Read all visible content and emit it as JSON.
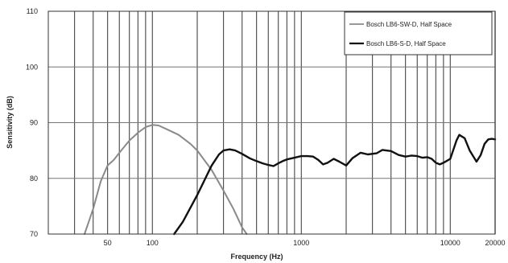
{
  "chart_data": {
    "type": "line",
    "title": "",
    "xlabel": "Frequency (Hz)",
    "ylabel": "Sensitivity (dB)",
    "x_scale": "log",
    "xlim": [
      20,
      20000
    ],
    "ylim": [
      70,
      110
    ],
    "x_ticks": [
      {
        "value": 50,
        "label": "50"
      },
      {
        "value": 100,
        "label": "100"
      },
      {
        "value": 1000,
        "label": "1000"
      },
      {
        "value": 10000,
        "label": "10000"
      },
      {
        "value": 20000,
        "label": "20000"
      }
    ],
    "y_ticks": [
      {
        "value": 70,
        "label": "70"
      },
      {
        "value": 80,
        "label": "80"
      },
      {
        "value": 90,
        "label": "90"
      },
      {
        "value": 100,
        "label": "100"
      },
      {
        "value": 110,
        "label": "110"
      }
    ],
    "grid": true,
    "legend_position": "top-right",
    "series": [
      {
        "name": "Bosch LB6-SW-D, Half Space",
        "color": "#8a8a8a",
        "points": [
          [
            35,
            70
          ],
          [
            40,
            74.5
          ],
          [
            45,
            79.5
          ],
          [
            50,
            82.3
          ],
          [
            55,
            83.3
          ],
          [
            60,
            84.6
          ],
          [
            70,
            86.8
          ],
          [
            80,
            88.2
          ],
          [
            90,
            89.2
          ],
          [
            100,
            89.6
          ],
          [
            110,
            89.5
          ],
          [
            130,
            88.6
          ],
          [
            150,
            87.8
          ],
          [
            180,
            86.2
          ],
          [
            200,
            85
          ],
          [
            250,
            81.5
          ],
          [
            300,
            77.8
          ],
          [
            350,
            74.5
          ],
          [
            400,
            71.2
          ],
          [
            430,
            70
          ]
        ]
      },
      {
        "name": "Bosch LB6-S-D, Half Space",
        "color": "#111111",
        "points": [
          [
            140,
            70
          ],
          [
            160,
            72.2
          ],
          [
            200,
            77
          ],
          [
            250,
            82.3
          ],
          [
            280,
            84.3
          ],
          [
            300,
            85
          ],
          [
            330,
            85.2
          ],
          [
            360,
            85
          ],
          [
            400,
            84.4
          ],
          [
            450,
            83.6
          ],
          [
            500,
            83.1
          ],
          [
            550,
            82.7
          ],
          [
            600,
            82.4
          ],
          [
            650,
            82.2
          ],
          [
            700,
            82.7
          ],
          [
            750,
            83.1
          ],
          [
            800,
            83.4
          ],
          [
            900,
            83.7
          ],
          [
            1000,
            84
          ],
          [
            1100,
            84
          ],
          [
            1200,
            83.9
          ],
          [
            1300,
            83.3
          ],
          [
            1400,
            82.5
          ],
          [
            1500,
            82.8
          ],
          [
            1650,
            83.5
          ],
          [
            1800,
            83
          ],
          [
            2000,
            82.3
          ],
          [
            2200,
            83.6
          ],
          [
            2500,
            84.6
          ],
          [
            2800,
            84.3
          ],
          [
            3200,
            84.5
          ],
          [
            3500,
            85.1
          ],
          [
            4000,
            84.9
          ],
          [
            4500,
            84.2
          ],
          [
            5000,
            83.9
          ],
          [
            5500,
            84.1
          ],
          [
            6000,
            84
          ],
          [
            6500,
            83.7
          ],
          [
            7000,
            83.8
          ],
          [
            7500,
            83.5
          ],
          [
            8000,
            82.8
          ],
          [
            8500,
            82.5
          ],
          [
            9000,
            82.8
          ],
          [
            10000,
            83.5
          ],
          [
            11000,
            86.8
          ],
          [
            11500,
            87.8
          ],
          [
            12500,
            87.2
          ],
          [
            13500,
            85
          ],
          [
            15000,
            83
          ],
          [
            16000,
            84.2
          ],
          [
            17000,
            86.2
          ],
          [
            18000,
            87
          ],
          [
            19000,
            87.1
          ],
          [
            20000,
            87
          ]
        ]
      }
    ]
  }
}
